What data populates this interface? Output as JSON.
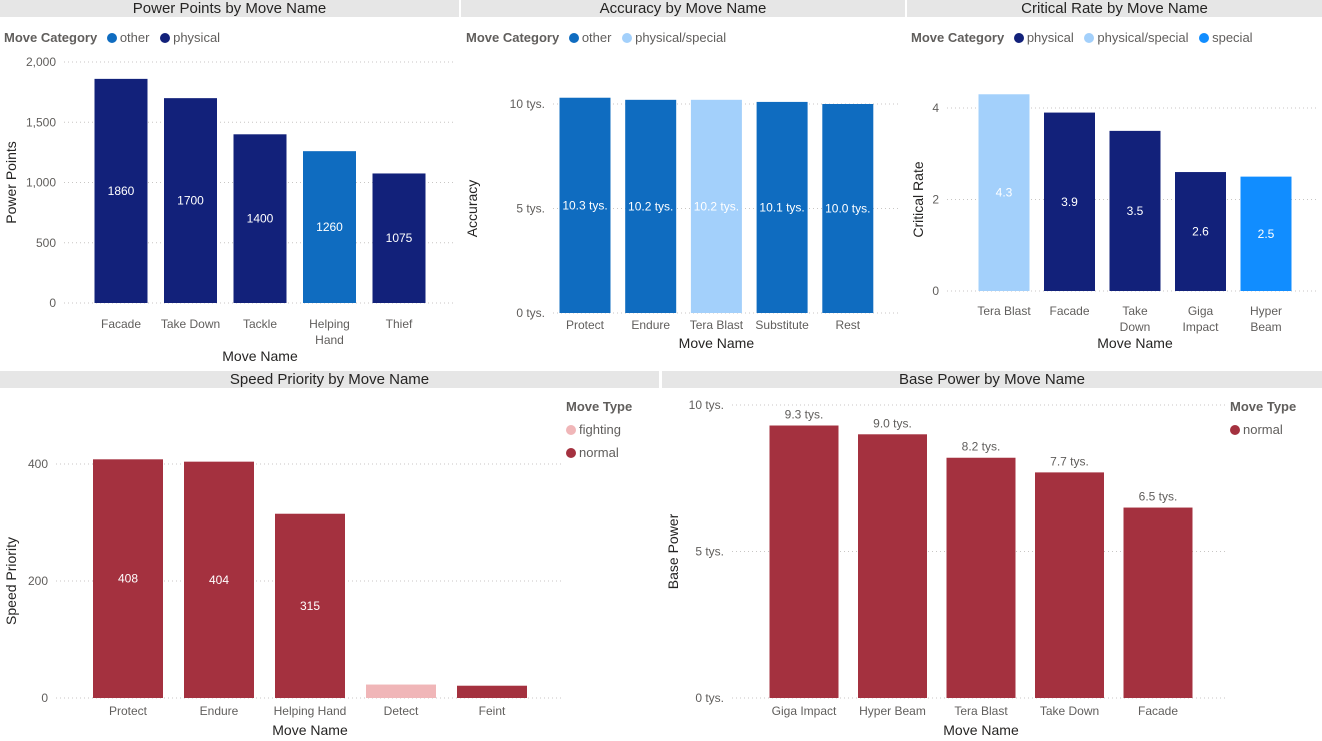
{
  "chart_data": [
    {
      "id": "pp",
      "type": "bar",
      "title": "Power Points by Move Name",
      "xlabel": "Move Name",
      "ylabel": "Power Points",
      "legend_title": "Move Category",
      "legend": [
        {
          "name": "other",
          "color": "#0f6cc0"
        },
        {
          "name": "physical",
          "color": "#12217a"
        }
      ],
      "categories": [
        [
          "Facade"
        ],
        [
          "Take Down"
        ],
        [
          "Tackle"
        ],
        [
          "Helping",
          "Hand"
        ],
        [
          "Thief"
        ]
      ],
      "values": [
        1860,
        1700,
        1400,
        1260,
        1075
      ],
      "labels": [
        "1860",
        "1700",
        "1400",
        "1260",
        "1075"
      ],
      "bar_series": [
        "physical",
        "physical",
        "physical",
        "other",
        "physical"
      ],
      "ylim": [
        0,
        2000
      ],
      "yticks": [
        0,
        500,
        1000,
        1500,
        2000
      ],
      "ytick_labels": [
        "0",
        "500",
        "1,000",
        "1,500",
        "2,000"
      ]
    },
    {
      "id": "acc",
      "type": "bar",
      "title": "Accuracy by Move Name",
      "xlabel": "Move Name",
      "ylabel": "Accuracy",
      "legend_title": "Move Category",
      "legend": [
        {
          "name": "other",
          "color": "#0f6cc0"
        },
        {
          "name": "physical/special",
          "color": "#a3d0fb"
        }
      ],
      "categories": [
        [
          "Protect"
        ],
        [
          "Endure"
        ],
        [
          "Tera Blast"
        ],
        [
          "Substitute"
        ],
        [
          "Rest"
        ]
      ],
      "values": [
        10300,
        10200,
        10200,
        10100,
        10000
      ],
      "labels": [
        "10.3 tys.",
        "10.2 tys.",
        "10.2 tys.",
        "10.1 tys.",
        "10.0 tys."
      ],
      "bar_series": [
        "other",
        "other",
        "physical/special",
        "other",
        "other"
      ],
      "ylim": [
        0,
        10000
      ],
      "yticks": [
        0,
        5000,
        10000
      ],
      "ytick_labels": [
        "0 tys.",
        "5 tys.",
        "10 tys."
      ]
    },
    {
      "id": "crit",
      "type": "bar",
      "title": "Critical Rate by Move Name",
      "xlabel": "Move Name",
      "ylabel": "Critical Rate",
      "legend_title": "Move Category",
      "legend": [
        {
          "name": "physical",
          "color": "#12217a"
        },
        {
          "name": "physical/special",
          "color": "#a3d0fb"
        },
        {
          "name": "special",
          "color": "#118dff"
        }
      ],
      "categories": [
        [
          "Tera Blast"
        ],
        [
          "Facade"
        ],
        [
          "Take",
          "Down"
        ],
        [
          "Giga",
          "Impact"
        ],
        [
          "Hyper",
          "Beam"
        ]
      ],
      "values": [
        4.3,
        3.9,
        3.5,
        2.6,
        2.5
      ],
      "labels": [
        "4.3",
        "3.9",
        "3.5",
        "2.6",
        "2.5"
      ],
      "bar_series": [
        "physical/special",
        "physical",
        "physical",
        "physical",
        "special"
      ],
      "ylim": [
        0,
        4
      ],
      "yticks": [
        0,
        2,
        4
      ],
      "ytick_labels": [
        "0",
        "2",
        "4"
      ]
    },
    {
      "id": "spd",
      "type": "bar",
      "title": "Speed Priority by Move Name",
      "xlabel": "Move Name",
      "ylabel": "Speed Priority",
      "legend_title": "Move Type",
      "legend": [
        {
          "name": "fighting",
          "color": "#f0b6b8"
        },
        {
          "name": "normal",
          "color": "#a4313f"
        }
      ],
      "categories": [
        [
          "Protect"
        ],
        [
          "Endure"
        ],
        [
          "Helping Hand"
        ],
        [
          "Detect"
        ],
        [
          "Feint"
        ]
      ],
      "values": [
        408,
        404,
        315,
        23,
        21
      ],
      "labels": [
        "408",
        "404",
        "315",
        "",
        ""
      ],
      "bar_series": [
        "normal",
        "normal",
        "normal",
        "fighting",
        "normal"
      ],
      "ylim": [
        0,
        400
      ],
      "yticks": [
        0,
        200,
        400
      ],
      "ytick_labels": [
        "0",
        "200",
        "400"
      ]
    },
    {
      "id": "bp",
      "type": "bar",
      "title": "Base Power by Move Name",
      "xlabel": "Move Name",
      "ylabel": "Base Power",
      "legend_title": "Move Type",
      "legend": [
        {
          "name": "normal",
          "color": "#a4313f"
        }
      ],
      "categories": [
        [
          "Giga Impact"
        ],
        [
          "Hyper Beam"
        ],
        [
          "Tera Blast"
        ],
        [
          "Take Down"
        ],
        [
          "Facade"
        ]
      ],
      "values": [
        9300,
        9000,
        8200,
        7700,
        6500
      ],
      "labels": [
        "9.3 tys.",
        "9.0 tys.",
        "8.2 tys.",
        "7.7 tys.",
        "6.5 tys."
      ],
      "bar_series": [
        "normal",
        "normal",
        "normal",
        "normal",
        "normal"
      ],
      "ylim": [
        0,
        10000
      ],
      "yticks": [
        0,
        5000,
        10000
      ],
      "ytick_labels": [
        "0 tys.",
        "5 tys.",
        "10 tys."
      ]
    }
  ]
}
